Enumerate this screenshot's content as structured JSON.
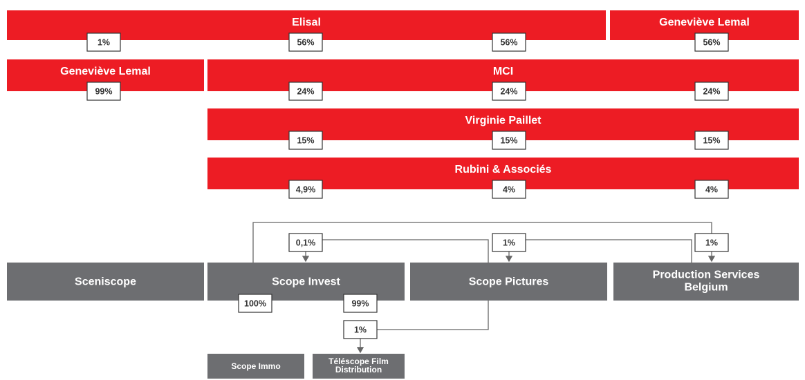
{
  "shareholders": [
    {
      "name": "Elisal"
    },
    {
      "name": "Geneviève Lemal"
    },
    {
      "name": "Geneviève Lemal"
    },
    {
      "name": "MCI"
    },
    {
      "name": "Virginie Paillet"
    },
    {
      "name": "Rubini & Associés"
    }
  ],
  "companies": [
    {
      "name": "Sceniscope"
    },
    {
      "name": "Scope Invest"
    },
    {
      "name": "Scope Pictures"
    },
    {
      "name": "Production Services Belgium"
    },
    {
      "name": "Scope Immo"
    },
    {
      "name": "Téléscope Film Distribution"
    }
  ],
  "stakes": [
    "1%",
    "56%",
    "56%",
    "56%",
    "99%",
    "24%",
    "24%",
    "24%",
    "15%",
    "15%",
    "15%",
    "4,9%",
    "4%",
    "4%",
    "0,1%",
    "1%",
    "1%",
    "100%",
    "99%",
    "1%"
  ]
}
